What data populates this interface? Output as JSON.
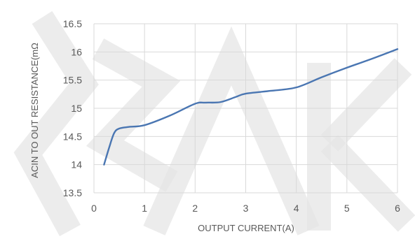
{
  "chart_data": {
    "type": "line",
    "title": "",
    "xlabel": "OUTPUT CURRENT(A)",
    "ylabel": "ACIN TO OUT RESISTANCE(mΩ",
    "xlim": [
      0,
      6
    ],
    "ylim": [
      13.5,
      16.5
    ],
    "x_ticks": [
      "0",
      "1",
      "2",
      "3",
      "4",
      "5",
      "6"
    ],
    "y_ticks": [
      "13.5",
      "14",
      "14.5",
      "15",
      "15.5",
      "16",
      "16.5"
    ],
    "grid": true,
    "legend": "none",
    "series": [
      {
        "color": "#4a76b2",
        "points": [
          {
            "x": 0.2,
            "y": 14.0
          },
          {
            "x": 0.3,
            "y": 14.3
          },
          {
            "x": 0.4,
            "y": 14.56
          },
          {
            "x": 0.5,
            "y": 14.64
          },
          {
            "x": 0.7,
            "y": 14.67
          },
          {
            "x": 1.0,
            "y": 14.7
          },
          {
            "x": 1.5,
            "y": 14.87
          },
          {
            "x": 2.0,
            "y": 15.08
          },
          {
            "x": 2.2,
            "y": 15.1
          },
          {
            "x": 2.5,
            "y": 15.11
          },
          {
            "x": 2.8,
            "y": 15.2
          },
          {
            "x": 3.0,
            "y": 15.26
          },
          {
            "x": 3.5,
            "y": 15.31
          },
          {
            "x": 4.0,
            "y": 15.37
          },
          {
            "x": 4.5,
            "y": 15.55
          },
          {
            "x": 5.0,
            "y": 15.72
          },
          {
            "x": 5.5,
            "y": 15.88
          },
          {
            "x": 6.0,
            "y": 16.05
          }
        ]
      }
    ]
  },
  "colors": {
    "grid": "#d9d9d9",
    "text": "#595959",
    "watermark": "#e6e6e6"
  }
}
